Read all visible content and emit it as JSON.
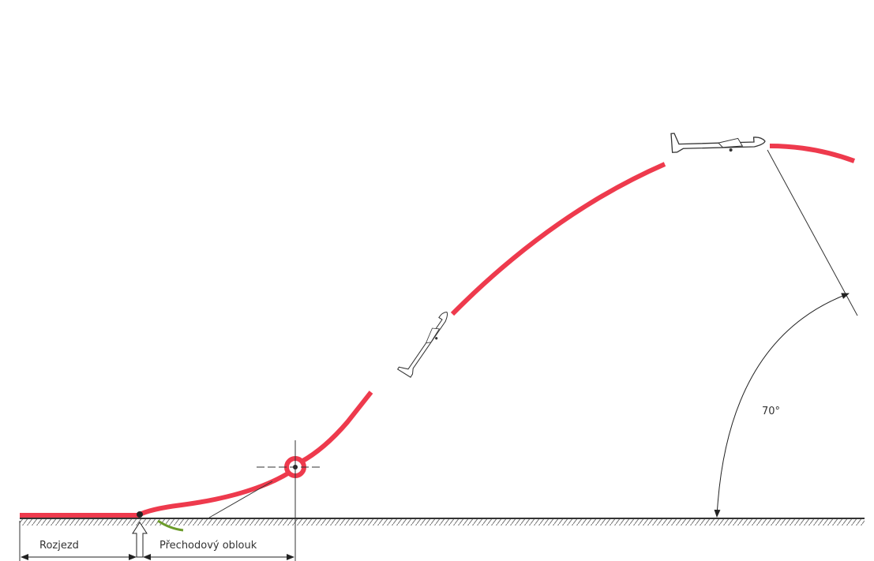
{
  "labels": {
    "ground_run": "Rozjezd",
    "transition": "Přechodový oblouk",
    "angle": "70°"
  }
}
